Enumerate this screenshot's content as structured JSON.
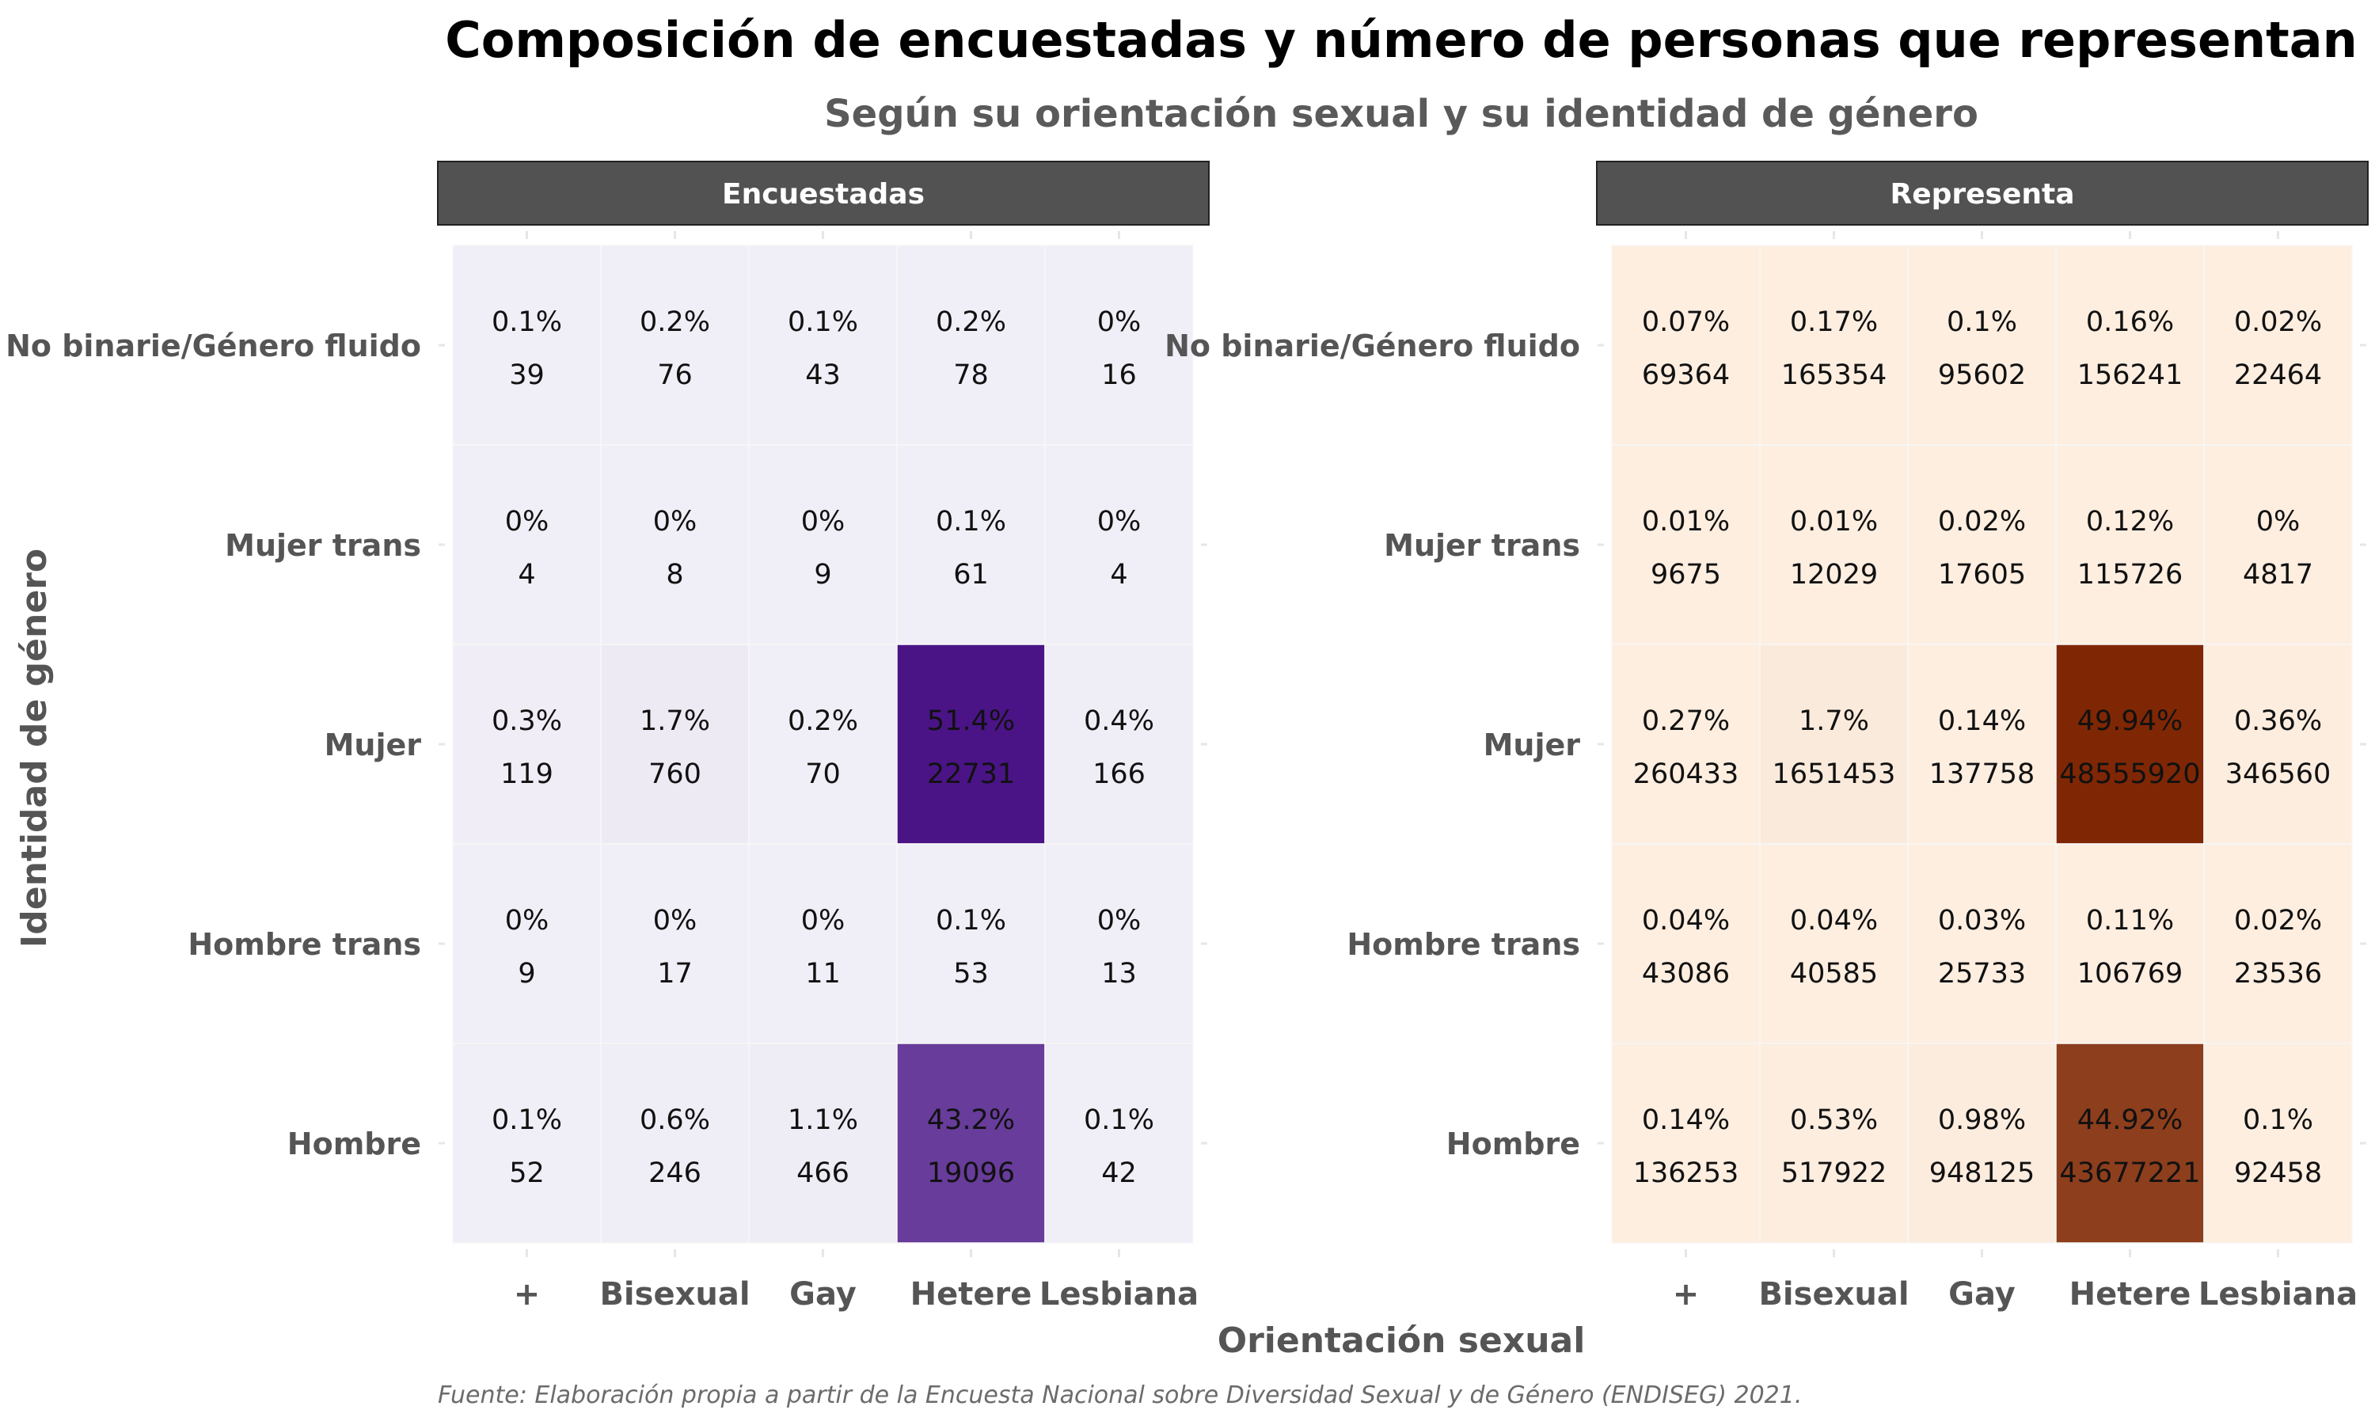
{
  "chart_data": {
    "type": "heatmap",
    "title": "Composición de encuestadas y número de personas que representan",
    "subtitle": "Según su orientación sexual y su identidad de género",
    "xlabel": "Orientación sexual",
    "ylabel": "Identidad de género",
    "caption": "Fuente: Elaboración propia a partir de la Encuesta Nacional sobre Diversidad Sexual y de Género (ENDISEG) 2021.",
    "x_categories": [
      "+",
      "Bisexual",
      "Gay",
      "Hetere",
      "Lesbiana"
    ],
    "y_categories": [
      "No binarie/Género fluido",
      "Mujer trans",
      "Mujer",
      "Hombre trans",
      "Hombre"
    ],
    "grid": false,
    "panels": [
      {
        "name": "Encuestadas",
        "color_low": "#f0eef6",
        "color_high": "#4a1486",
        "pct_labels": [
          [
            "0.1%",
            "0.2%",
            "0.1%",
            "0.2%",
            "0%"
          ],
          [
            "0%",
            "0%",
            "0%",
            "0.1%",
            "0%"
          ],
          [
            "0.3%",
            "1.7%",
            "0.2%",
            "51.4%",
            "0.4%"
          ],
          [
            "0%",
            "0%",
            "0%",
            "0.1%",
            "0%"
          ],
          [
            "0.1%",
            "0.6%",
            "1.1%",
            "43.2%",
            "0.1%"
          ]
        ],
        "values": [
          [
            39,
            76,
            43,
            78,
            16
          ],
          [
            4,
            8,
            9,
            61,
            4
          ],
          [
            119,
            760,
            70,
            22731,
            166
          ],
          [
            9,
            17,
            11,
            53,
            13
          ],
          [
            52,
            246,
            466,
            19096,
            42
          ]
        ]
      },
      {
        "name": "Representa",
        "color_low": "#fdeee0",
        "color_high": "#7f2704",
        "pct_labels": [
          [
            "0.07%",
            "0.17%",
            "0.1%",
            "0.16%",
            "0.02%"
          ],
          [
            "0.01%",
            "0.01%",
            "0.02%",
            "0.12%",
            "0%"
          ],
          [
            "0.27%",
            "1.7%",
            "0.14%",
            "49.94%",
            "0.36%"
          ],
          [
            "0.04%",
            "0.04%",
            "0.03%",
            "0.11%",
            "0.02%"
          ],
          [
            "0.14%",
            "0.53%",
            "0.98%",
            "44.92%",
            "0.1%"
          ]
        ],
        "values": [
          [
            69364,
            165354,
            95602,
            156241,
            22464
          ],
          [
            9675,
            12029,
            17605,
            115726,
            4817
          ],
          [
            260433,
            1651453,
            137758,
            48555920,
            346560
          ],
          [
            43086,
            40585,
            25733,
            106769,
            23536
          ],
          [
            136253,
            517922,
            948125,
            43677221,
            92458
          ]
        ]
      }
    ]
  }
}
